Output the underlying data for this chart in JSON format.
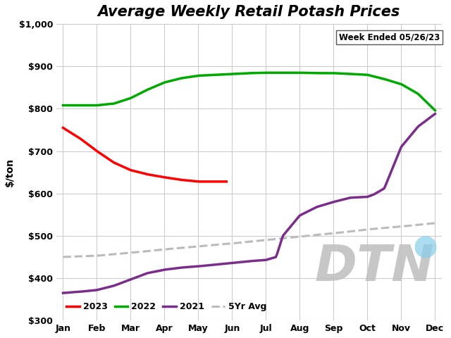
{
  "title": "Average Weekly Retail Potash Prices",
  "ylabel": "$/ton",
  "annotation": "Week Ended 05/26/23",
  "background_color": "#ffffff",
  "grid_color": "#cccccc",
  "ylim": [
    300,
    1000
  ],
  "yticks": [
    300,
    400,
    500,
    600,
    700,
    800,
    900,
    1000
  ],
  "ytick_labels": [
    "$300",
    "$400",
    "$500",
    "$600",
    "$700",
    "$800",
    "$900",
    "$1,000"
  ],
  "months": [
    "Jan",
    "Feb",
    "Mar",
    "Apr",
    "May",
    "Jun",
    "Jul",
    "Aug",
    "Sep",
    "Oct",
    "Nov",
    "Dec"
  ],
  "series_2023": {
    "color": "#ff0000",
    "label": "2023",
    "linewidth": 2.5,
    "x_pts": [
      0,
      0.5,
      1.0,
      1.5,
      2.0,
      2.5,
      3.0,
      3.5,
      4.0,
      4.5,
      4.83
    ],
    "y_pts": [
      755,
      730,
      700,
      673,
      655,
      645,
      638,
      632,
      628,
      628,
      628
    ]
  },
  "series_2022": {
    "color": "#00aa00",
    "label": "2022",
    "linewidth": 2.5,
    "x_pts": [
      0,
      0.5,
      1.0,
      1.5,
      2.0,
      2.5,
      3.0,
      3.5,
      4.0,
      4.5,
      5.0,
      5.5,
      6.0,
      6.5,
      7.0,
      7.5,
      8.0,
      8.5,
      9.0,
      9.5,
      10.0,
      10.5,
      11.0
    ],
    "y_pts": [
      808,
      808,
      808,
      812,
      825,
      845,
      862,
      872,
      878,
      880,
      882,
      884,
      885,
      885,
      885,
      884,
      884,
      882,
      880,
      870,
      858,
      835,
      796
    ]
  },
  "series_2021": {
    "color": "#7b2d8b",
    "label": "2021",
    "linewidth": 2.5,
    "x_pts": [
      0,
      0.5,
      1.0,
      1.5,
      2.0,
      2.5,
      3.0,
      3.5,
      4.0,
      4.5,
      5.0,
      5.5,
      6.0,
      6.3,
      6.5,
      7.0,
      7.5,
      8.0,
      8.5,
      9.0,
      9.2,
      9.5,
      10.0,
      10.5,
      11.0
    ],
    "y_pts": [
      365,
      368,
      372,
      382,
      397,
      412,
      420,
      425,
      428,
      432,
      436,
      440,
      443,
      450,
      500,
      548,
      568,
      580,
      590,
      592,
      598,
      612,
      710,
      758,
      788
    ]
  },
  "series_5yr": {
    "color": "#bbbbbb",
    "label": "5Yr Avg",
    "linewidth": 2.2,
    "linestyle": "--",
    "x_pts": [
      0,
      1,
      2,
      3,
      4,
      5,
      6,
      7,
      8,
      9,
      10,
      11
    ],
    "y_pts": [
      450,
      453,
      460,
      468,
      475,
      482,
      490,
      498,
      506,
      515,
      522,
      530
    ]
  },
  "dtn_text_color": "#bebebe",
  "dtn_circle_color": "#87ceeb"
}
